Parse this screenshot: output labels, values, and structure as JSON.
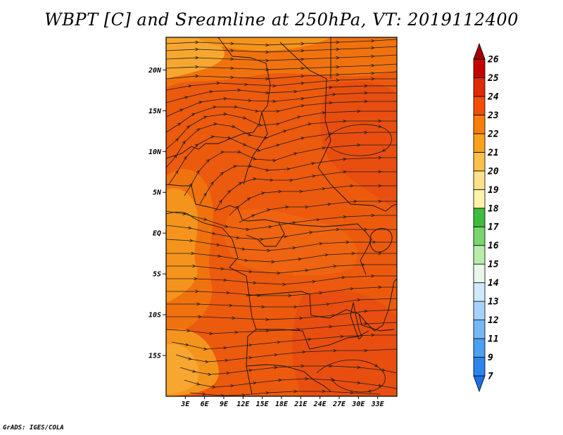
{
  "title": "WBPT [C] and Sreamline at 250hPa, VT: 2019112400",
  "credit": "GrADS: IGES/COLA",
  "map": {
    "lon_range": [
      0,
      36
    ],
    "lat_range": [
      -20,
      24
    ],
    "lat_ticks": [
      {
        "value": 20,
        "label": "20N"
      },
      {
        "value": 15,
        "label": "15N"
      },
      {
        "value": 10,
        "label": "10N"
      },
      {
        "value": 5,
        "label": "5N"
      },
      {
        "value": 0,
        "label": "EQ"
      },
      {
        "value": -5,
        "label": "5S"
      },
      {
        "value": -10,
        "label": "10S"
      },
      {
        "value": -15,
        "label": "15S"
      }
    ],
    "lon_ticks": [
      {
        "value": 3,
        "label": "3E"
      },
      {
        "value": 6,
        "label": "6E"
      },
      {
        "value": 9,
        "label": "9E"
      },
      {
        "value": 12,
        "label": "12E"
      },
      {
        "value": 15,
        "label": "15E"
      },
      {
        "value": 18,
        "label": "18E"
      },
      {
        "value": 21,
        "label": "21E"
      },
      {
        "value": 24,
        "label": "24E"
      },
      {
        "value": 27,
        "label": "27E"
      },
      {
        "value": 30,
        "label": "30E"
      },
      {
        "value": 33,
        "label": "33E"
      }
    ]
  },
  "colorbar": {
    "levels": [
      "7",
      "9",
      "11",
      "12",
      "13",
      "14",
      "15",
      "16",
      "17",
      "18",
      "19",
      "20",
      "21",
      "22",
      "23",
      "24",
      "25",
      "26"
    ],
    "colors": [
      "#1e6fe6",
      "#2b85ec",
      "#4ba0f0",
      "#76b8f5",
      "#a6d2fa",
      "#cfe8fc",
      "#e8f7ea",
      "#b8ecaa",
      "#78d66c",
      "#3cbd3c",
      "#fff3a8",
      "#fde08a",
      "#fbc04a",
      "#f9a21a",
      "#f87e0a",
      "#f24e06",
      "#e02a05",
      "#c40000",
      "#a00000"
    ]
  },
  "colors": {
    "field_dark": "#e84e10",
    "field_mid": "#f0680e",
    "field_light": "#f5941c",
    "field_pale": "#f7a730",
    "line": "#1a1a1a"
  }
}
